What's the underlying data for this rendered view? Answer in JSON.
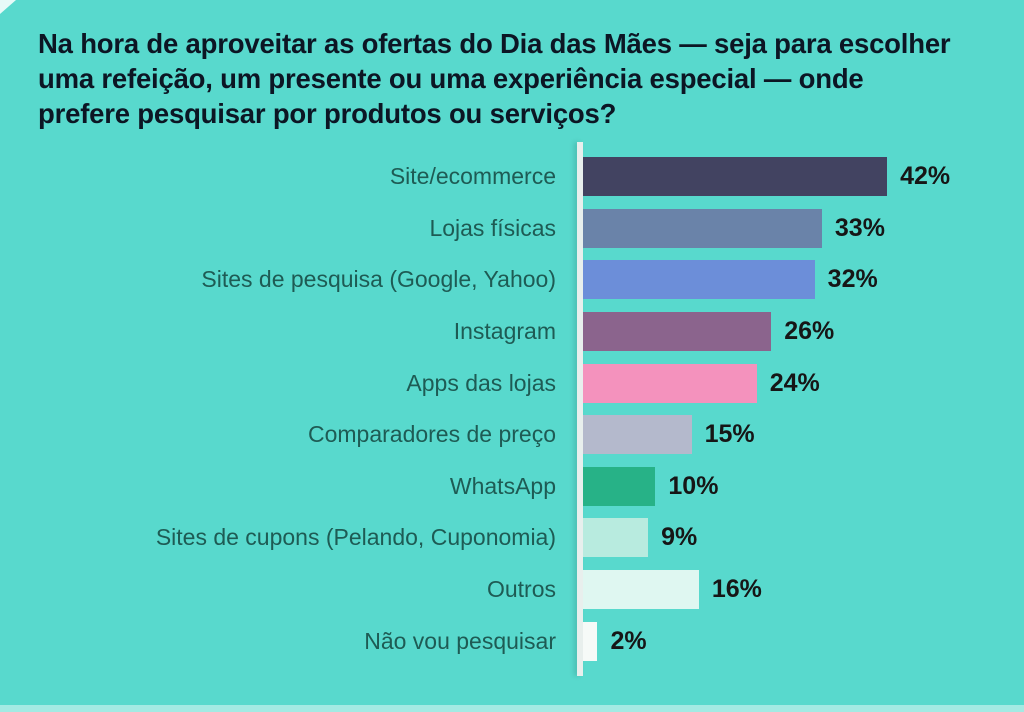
{
  "title_lines": [
    "Na hora de aproveitar as ofertas do Dia das Mães — seja para escolher",
    "uma refeição, um presente ou uma experiência especial — onde",
    "prefere pesquisar por produtos ou serviços?"
  ],
  "colors": {
    "background": "#58d9cd",
    "title_text": "#0c1624",
    "label_text": "#1e5b54",
    "value_text": "#161616",
    "axis_line": "#e8efed"
  },
  "chart_data": {
    "type": "bar",
    "orientation": "horizontal",
    "title": "Na hora de aproveitar as ofertas do Dia das Mães — seja para escolher uma refeição, um presente ou uma experiência especial — onde prefere pesquisar por produtos ou serviços?",
    "categories": [
      "Site/ecommerce",
      "Lojas físicas",
      "Sites de pesquisa (Google, Yahoo)",
      "Instagram",
      "Apps das lojas",
      "Comparadores de preço",
      "WhatsApp",
      "Sites de cupons (Pelando, Cuponomia)",
      "Outros",
      "Não vou pesquisar"
    ],
    "values": [
      42,
      33,
      32,
      26,
      24,
      15,
      10,
      9,
      16,
      2
    ],
    "value_suffix": "%",
    "value_labels": [
      "42%",
      "33%",
      "32%",
      "26%",
      "24%",
      "15%",
      "10%",
      "9%",
      "16%",
      "2%"
    ],
    "bar_colors": [
      "#424361",
      "#6a83a9",
      "#6c8ed9",
      "#8b648d",
      "#f492bd",
      "#b4b9cc",
      "#27b287",
      "#b8ebdf",
      "#dff7f1",
      "#f6faf8"
    ],
    "xlim": [
      0,
      46
    ],
    "grid": false,
    "legend": false,
    "value_labels_position": "right-of-bar",
    "category_labels_position": "left-of-axis"
  }
}
